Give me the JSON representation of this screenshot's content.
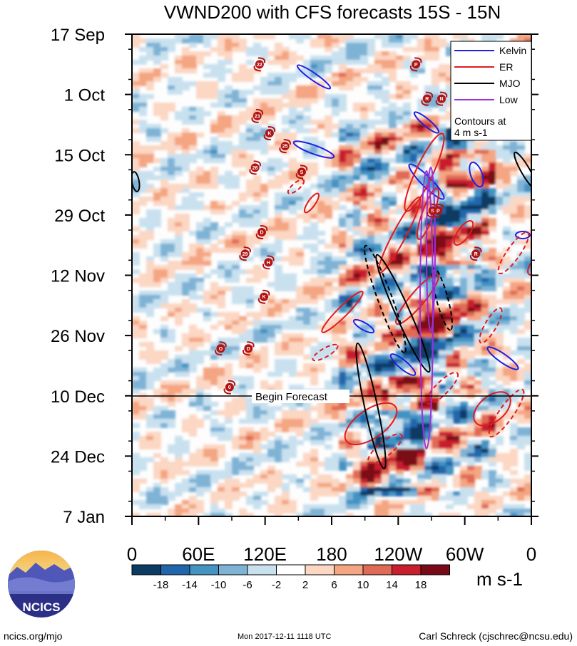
{
  "chart_data": {
    "type": "heatmap",
    "title": "VWND200 with CFS forecasts  15S - 15N",
    "x_axis": {
      "tick_labels": [
        "0",
        "60E",
        "120E",
        "180",
        "120W",
        "60W",
        "0"
      ],
      "longitudes_deg_east": [
        0,
        60,
        120,
        180,
        240,
        300,
        360
      ]
    },
    "y_axis": {
      "tick_labels": [
        "17 Sep",
        "1 Oct",
        "15 Oct",
        "29 Oct",
        "12 Nov",
        "26 Nov",
        "10 Dec",
        "24 Dec",
        "7 Jan"
      ],
      "dates": [
        "2017-09-17",
        "2017-10-01",
        "2017-10-15",
        "2017-10-29",
        "2017-11-12",
        "2017-11-26",
        "2017-12-10",
        "2017-12-24",
        "2018-01-07"
      ]
    },
    "forecast_start": {
      "label": "Begin Forecast",
      "date": "2017-12-10"
    },
    "colorbar": {
      "labels": [
        "-18",
        "-14",
        "-10",
        "-6",
        "-2",
        "2",
        "6",
        "10",
        "14",
        "18"
      ],
      "unit": "m s-1",
      "colors": [
        "#0b3a63",
        "#2166ac",
        "#4393c3",
        "#7fb3d5",
        "#c9e1ef",
        "#ffffff",
        "#fbd7c4",
        "#f4a582",
        "#e06a55",
        "#c81e2e",
        "#7a0a17"
      ]
    },
    "legend": {
      "placement": "top-right",
      "entries": [
        {
          "name": "Kelvin",
          "color": "#1f1fe6"
        },
        {
          "name": "ER",
          "color": "#e31a1c"
        },
        {
          "name": "MJO",
          "color": "#000000"
        },
        {
          "name": "Low",
          "color": "#9b30d9"
        }
      ],
      "note_line1": "Contours at",
      "note_line2": "4 m s-1"
    },
    "storms": [
      {
        "label": "22",
        "lon": 115,
        "date": "2017-09-24"
      },
      {
        "label": "23",
        "lon": 113,
        "date": "2017-10-06"
      },
      {
        "label": "K",
        "lon": 124,
        "date": "2017-10-10"
      },
      {
        "label": "25",
        "lon": 138,
        "date": "2017-10-13"
      },
      {
        "label": "26",
        "lon": 111,
        "date": "2017-10-18"
      },
      {
        "label": "S",
        "lon": 153,
        "date": "2017-10-19"
      },
      {
        "label": "P",
        "lon": 256,
        "date": "2017-09-24"
      },
      {
        "label": "R",
        "lon": 266,
        "date": "2017-10-02"
      },
      {
        "label": "N",
        "lon": 279,
        "date": "2017-10-02"
      },
      {
        "label": "S",
        "lon": 271,
        "date": "2017-10-28"
      },
      {
        "label": "P",
        "lon": 276,
        "date": "2017-10-28"
      },
      {
        "label": "D",
        "lon": 117,
        "date": "2017-11-02"
      },
      {
        "label": "29",
        "lon": 102,
        "date": "2017-11-07"
      },
      {
        "label": "H",
        "lon": 123,
        "date": "2017-11-09"
      },
      {
        "label": "R",
        "lon": 310,
        "date": "2017-11-07"
      },
      {
        "label": "K",
        "lon": 119,
        "date": "2017-11-17"
      },
      {
        "label": "O",
        "lon": 80,
        "date": "2017-11-29"
      },
      {
        "label": "D",
        "lon": 105,
        "date": "2017-11-29"
      },
      {
        "label": "0",
        "lon": 88,
        "date": "2017-12-08"
      }
    ]
  },
  "footer": {
    "logo_text": "NCICS",
    "url": "ncics.org/mjo",
    "timestamp": "Mon 2017-12-11 1118 UTC",
    "author": "Carl Schreck (cjschrec@ncsu.edu)"
  }
}
